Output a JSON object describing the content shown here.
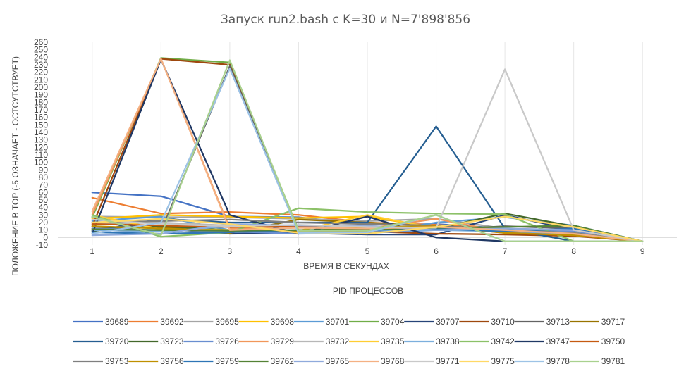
{
  "chart_data": {
    "type": "line",
    "title": "Запуск run2.bash с K=30 и N=7'898'856",
    "xlabel": "ВРЕМЯ В СЕКУНДАХ",
    "ylabel": "ПОЛОЖЕНИЕ В TOP (-5 ОЗНАЧАЕТ - ОСТСУТСТВУЕТ)",
    "legend_title": "PID ПРОЦЕССОВ",
    "legend_position": "bottom",
    "grid": "vertical",
    "x": [
      1,
      2,
      3,
      4,
      5,
      6,
      7,
      8,
      9
    ],
    "ylim": [
      -10,
      260
    ],
    "yticks": [
      -10,
      0,
      10,
      20,
      30,
      40,
      50,
      60,
      70,
      80,
      90,
      100,
      110,
      120,
      130,
      140,
      150,
      160,
      170,
      180,
      190,
      200,
      210,
      220,
      230,
      240,
      250,
      260
    ],
    "series": [
      {
        "name": "39689",
        "color": "#4472C4",
        "values": [
          60,
          55,
          28,
          27,
          17,
          18,
          12,
          7,
          -5
        ]
      },
      {
        "name": "39692",
        "color": "#ED7D31",
        "values": [
          53,
          32,
          34,
          30,
          20,
          17,
          11,
          5,
          -5
        ]
      },
      {
        "name": "39695",
        "color": "#A5A5A5",
        "values": [
          28,
          27,
          27,
          25,
          22,
          25,
          12,
          6,
          -5
        ]
      },
      {
        "name": "39698",
        "color": "#FFC000",
        "values": [
          25,
          30,
          28,
          26,
          28,
          13,
          10,
          4,
          -5
        ]
      },
      {
        "name": "39701",
        "color": "#5B9BD5",
        "values": [
          22,
          28,
          10,
          8,
          5,
          20,
          27,
          16,
          -5
        ]
      },
      {
        "name": "39704",
        "color": "#70AD47",
        "values": [
          27,
          239,
          233,
          10,
          9,
          15,
          12,
          -5,
          -5
        ]
      },
      {
        "name": "39707",
        "color": "#264478",
        "values": [
          20,
          12,
          5,
          6,
          4,
          4,
          30,
          10,
          -5
        ]
      },
      {
        "name": "39710",
        "color": "#9E480E",
        "values": [
          15,
          238,
          230,
          7,
          8,
          5,
          4,
          2,
          -5
        ]
      },
      {
        "name": "39713",
        "color": "#636363",
        "values": [
          10,
          8,
          228,
          9,
          11,
          10,
          15,
          12,
          -5
        ]
      },
      {
        "name": "39717",
        "color": "#997300",
        "values": [
          12,
          14,
          6,
          24,
          20,
          15,
          8,
          5,
          -5
        ]
      },
      {
        "name": "39720",
        "color": "#255E91",
        "values": [
          8,
          25,
          20,
          20,
          20,
          148,
          12,
          -5,
          -5
        ]
      },
      {
        "name": "39723",
        "color": "#43682B",
        "values": [
          9,
          15,
          10,
          9,
          10,
          12,
          32,
          15,
          -5
        ]
      },
      {
        "name": "39726",
        "color": "#698ED0",
        "values": [
          12,
          10,
          8,
          5,
          6,
          10,
          10,
          8,
          -5
        ]
      },
      {
        "name": "39729",
        "color": "#F1975A",
        "values": [
          30,
          238,
          12,
          14,
          12,
          25,
          7,
          3,
          -5
        ]
      },
      {
        "name": "39732",
        "color": "#B7B7B7",
        "values": [
          18,
          20,
          16,
          14,
          15,
          12,
          8,
          6,
          -5
        ]
      },
      {
        "name": "39735",
        "color": "#FFCD33",
        "values": [
          30,
          11,
          10,
          9,
          30,
          12,
          10,
          6,
          -5
        ]
      },
      {
        "name": "39738",
        "color": "#7CAFDD",
        "values": [
          10,
          8,
          15,
          14,
          9,
          10,
          8,
          4,
          -5
        ]
      },
      {
        "name": "39742",
        "color": "#8CC168",
        "values": [
          30,
          1,
          7,
          39,
          34,
          32,
          31,
          -5,
          -5
        ]
      },
      {
        "name": "39747",
        "color": "#203864",
        "values": [
          5,
          237,
          30,
          5,
          28,
          0,
          -5,
          -5,
          -5
        ]
      },
      {
        "name": "39750",
        "color": "#C55A11",
        "values": [
          18,
          16,
          14,
          15,
          10,
          15,
          6,
          3,
          -5
        ]
      },
      {
        "name": "39753",
        "color": "#7F7F7F",
        "values": [
          20,
          22,
          24,
          20,
          18,
          16,
          10,
          6,
          -5
        ]
      },
      {
        "name": "39756",
        "color": "#BF9000",
        "values": [
          15,
          12,
          9,
          8,
          14,
          15,
          6,
          3,
          -5
        ]
      },
      {
        "name": "39759",
        "color": "#2E75B6",
        "values": [
          7,
          5,
          7,
          10,
          10,
          12,
          8,
          12,
          -5
        ]
      },
      {
        "name": "39762",
        "color": "#548235",
        "values": [
          11,
          10,
          9,
          10,
          11,
          13,
          14,
          16,
          -5
        ]
      },
      {
        "name": "39765",
        "color": "#8FAADC",
        "values": [
          3,
          5,
          18,
          16,
          15,
          10,
          12,
          10,
          -5
        ]
      },
      {
        "name": "39768",
        "color": "#F4B183",
        "values": [
          35,
          238,
          10,
          13,
          12,
          14,
          10,
          5,
          -5
        ]
      },
      {
        "name": "39771",
        "color": "#C9C9C9",
        "values": [
          24,
          18,
          15,
          17,
          14,
          13,
          224,
          10,
          -5
        ]
      },
      {
        "name": "39775",
        "color": "#FFD966",
        "values": [
          20,
          25,
          18,
          6,
          5,
          14,
          28,
          14,
          -5
        ]
      },
      {
        "name": "39778",
        "color": "#9DC3E6",
        "values": [
          5,
          20,
          225,
          6,
          7,
          30,
          -5,
          -5,
          -5
        ]
      },
      {
        "name": "39781",
        "color": "#A9D18E",
        "values": [
          28,
          3,
          236,
          9,
          9,
          30,
          -5,
          -5,
          -5
        ]
      }
    ]
  }
}
